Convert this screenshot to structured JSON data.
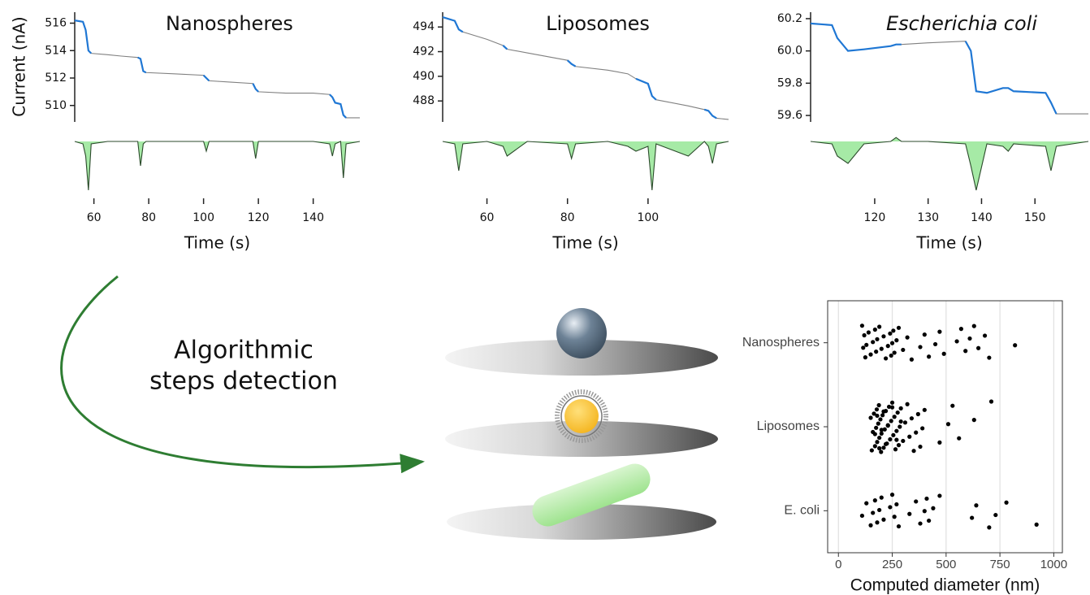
{
  "chart_data": [
    {
      "type": "line",
      "title": "Nanospheres",
      "ylabel": "Current (nA)",
      "xlabel": "Time (s)",
      "x": [
        53,
        56,
        57,
        58,
        59,
        65,
        70,
        76,
        77,
        78,
        79,
        90,
        100,
        101,
        102,
        110,
        118,
        119,
        120,
        130,
        140,
        146,
        147,
        148,
        150,
        151,
        152,
        157
      ],
      "series": [
        {
          "color": "#808080",
          "values": [
            516.2,
            516.1,
            515.5,
            514.0,
            513.8,
            513.7,
            513.6,
            513.5,
            513.4,
            512.5,
            512.4,
            512.3,
            512.2,
            512.0,
            511.8,
            511.7,
            511.6,
            511.2,
            511.0,
            510.9,
            510.9,
            510.8,
            510.6,
            510.2,
            510.1,
            509.3,
            509.1,
            509.1
          ]
        },
        {
          "color": "#1f77d4",
          "values": [
            516.2,
            516.1,
            515.5,
            514.0,
            513.8,
            null,
            null,
            513.5,
            513.4,
            512.5,
            512.4,
            null,
            512.2,
            512.0,
            511.8,
            null,
            511.6,
            511.2,
            511.0,
            null,
            null,
            510.8,
            510.6,
            510.2,
            510.1,
            509.3,
            509.1,
            null
          ]
        },
        {
          "color": "#2b4a2b",
          "fill": "#a6eaa6",
          "axis": "y2",
          "values": [
            0,
            -0.05,
            -0.3,
            -1,
            -0.05,
            0,
            0,
            0,
            -0.5,
            -0.05,
            0,
            0,
            0,
            -0.2,
            0,
            0,
            0,
            -0.35,
            0,
            0,
            0,
            -0.05,
            -0.3,
            -0.05,
            0,
            -0.75,
            -0.05,
            0
          ]
        }
      ],
      "xlim": [
        53,
        157
      ],
      "xticks": [
        60,
        80,
        100,
        120,
        140
      ],
      "ylim": [
        508.8,
        516.8
      ],
      "yticks": [
        510,
        512,
        514,
        516
      ],
      "y2lim": [
        -1.1,
        0.15
      ]
    },
    {
      "type": "line",
      "title": "Liposomes",
      "xlabel": "Time (s)",
      "x": [
        49,
        52,
        53,
        54,
        60,
        64,
        65,
        70,
        80,
        81,
        82,
        90,
        95,
        97,
        100,
        101,
        102,
        110,
        114,
        115,
        116,
        117,
        120
      ],
      "series": [
        {
          "color": "#808080",
          "values": [
            494.8,
            494.5,
            493.8,
            493.6,
            493.0,
            492.5,
            492.2,
            491.9,
            491.3,
            491.0,
            490.8,
            490.5,
            490.2,
            489.8,
            489.4,
            488.4,
            488.1,
            487.6,
            487.3,
            487.2,
            486.8,
            486.6,
            486.5
          ]
        },
        {
          "color": "#1f77d4",
          "values": [
            494.8,
            494.5,
            493.8,
            493.6,
            null,
            492.5,
            492.2,
            null,
            491.3,
            491.0,
            490.8,
            null,
            null,
            489.8,
            489.4,
            488.4,
            488.1,
            null,
            487.3,
            487.2,
            486.8,
            486.6,
            null
          ]
        },
        {
          "color": "#2b4a2b",
          "fill": "#a6eaa6",
          "axis": "y2",
          "values": [
            0,
            -0.05,
            -0.6,
            -0.05,
            0,
            -0.1,
            -0.3,
            0,
            -0.05,
            -0.35,
            -0.05,
            0,
            -0.1,
            -0.2,
            -0.1,
            -1,
            -0.05,
            -0.3,
            0,
            -0.1,
            -0.45,
            -0.05,
            0
          ]
        }
      ],
      "xlim": [
        49,
        120
      ],
      "xticks": [
        60,
        80,
        100
      ],
      "ylim": [
        486.3,
        495.2
      ],
      "yticks": [
        488,
        490,
        492,
        494
      ],
      "y2lim": [
        -1.1,
        0.15
      ]
    },
    {
      "type": "line",
      "title": "Escherichia coli",
      "title_italic": true,
      "xlabel": "Time (s)",
      "x": [
        108,
        112,
        113,
        115,
        118,
        123,
        124,
        125,
        130,
        137,
        138,
        139,
        141,
        144,
        145,
        146,
        152,
        153,
        154,
        160
      ],
      "series": [
        {
          "color": "#808080",
          "values": [
            60.17,
            60.16,
            60.08,
            60.0,
            60.01,
            60.03,
            60.04,
            60.04,
            60.05,
            60.06,
            60.0,
            59.75,
            59.74,
            59.77,
            59.77,
            59.75,
            59.74,
            59.68,
            59.61,
            59.61
          ]
        },
        {
          "color": "#1f77d4",
          "values": [
            60.17,
            60.16,
            60.08,
            60.0,
            60.01,
            60.03,
            60.04,
            60.04,
            null,
            60.06,
            60.0,
            59.75,
            59.74,
            59.77,
            59.77,
            59.75,
            59.74,
            59.68,
            59.61,
            null
          ]
        },
        {
          "color": "#2b4a2b",
          "fill": "#a6eaa6",
          "axis": "y2",
          "values": [
            0,
            -0.05,
            -0.3,
            -0.45,
            -0.05,
            0,
            0.08,
            0,
            0,
            -0.05,
            -0.5,
            -1,
            -0.05,
            -0.1,
            -0.2,
            -0.05,
            -0.1,
            -0.6,
            -0.1,
            0
          ]
        }
      ],
      "xlim": [
        108,
        160
      ],
      "xticks": [
        120,
        130,
        140,
        150
      ],
      "ylim": [
        59.56,
        60.24
      ],
      "yticks": [
        {
          "value": 59.6,
          "label": "59.6"
        },
        {
          "value": 59.8,
          "label": "59.8"
        },
        {
          "value": 60,
          "label": "60.0"
        },
        {
          "value": 60.2,
          "label": "60.2"
        }
      ],
      "y2lim": [
        -1.1,
        0.15
      ]
    },
    {
      "type": "strip",
      "xlabel": "Computed diameter (nm)",
      "color": "#000000",
      "grid": true,
      "categories": [
        "Nanospheres",
        "Liposomes",
        "E. coli"
      ],
      "values": [
        [
          110,
          115,
          120,
          125,
          130,
          140,
          150,
          160,
          170,
          175,
          180,
          190,
          200,
          210,
          220,
          230,
          240,
          245,
          250,
          255,
          260,
          270,
          280,
          300,
          320,
          340,
          380,
          400,
          420,
          450,
          470,
          490,
          550,
          570,
          590,
          610,
          630,
          650,
          680,
          700,
          820
        ],
        [
          150,
          155,
          160,
          165,
          170,
          175,
          178,
          180,
          185,
          188,
          190,
          195,
          198,
          200,
          205,
          210,
          215,
          220,
          225,
          230,
          235,
          240,
          245,
          250,
          255,
          260,
          265,
          270,
          275,
          280,
          285,
          290,
          300,
          310,
          320,
          330,
          340,
          350,
          360,
          370,
          380,
          390,
          400,
          470,
          510,
          530,
          560,
          630,
          710,
          170,
          180,
          190,
          200,
          210,
          220,
          230,
          250,
          270,
          290
        ],
        [
          110,
          130,
          150,
          160,
          170,
          180,
          190,
          200,
          210,
          240,
          250,
          260,
          270,
          280,
          330,
          360,
          380,
          400,
          410,
          420,
          440,
          470,
          620,
          640,
          700,
          730,
          780,
          920
        ]
      ],
      "xlim": [
        -50,
        1040
      ],
      "xticks": [
        0,
        250,
        500,
        750,
        1000
      ]
    }
  ],
  "diagram": {
    "label": [
      "Algorithmic",
      "steps detection"
    ]
  }
}
